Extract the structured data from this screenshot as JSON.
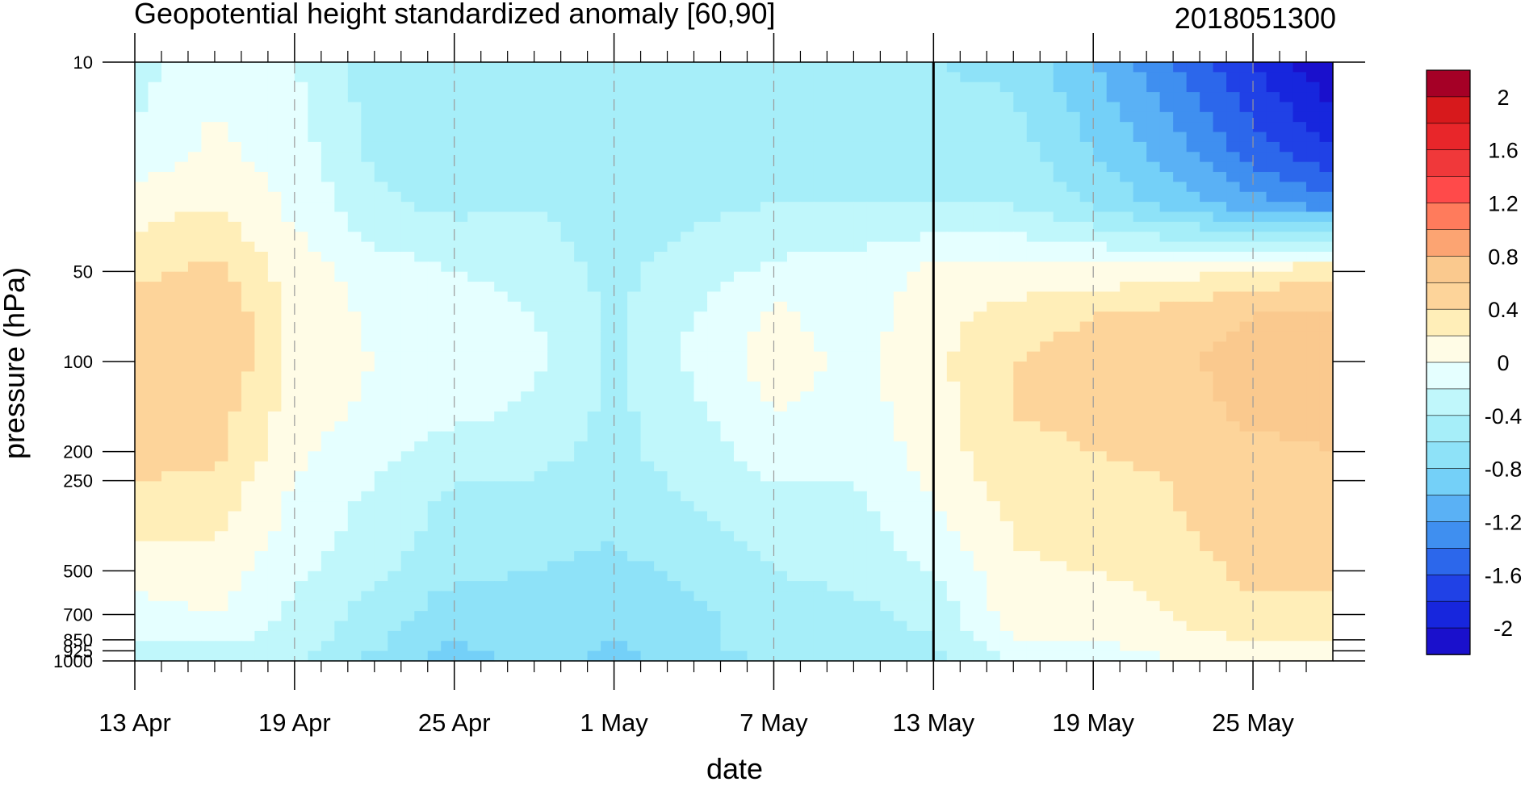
{
  "chart_data": {
    "type": "heatmap",
    "title": "Geopotential height standardized anomaly [60,90]",
    "subtitle": "2018051300",
    "xlabel": "date",
    "ylabel": "pressure (hPa)",
    "x_tick_labels": [
      "13 Apr",
      "19 Apr",
      "25 Apr",
      "1 May",
      "7 May",
      "13 May",
      "19 May",
      "25 May"
    ],
    "x_tick_day_offsets": [
      0,
      6,
      12,
      18,
      24,
      30,
      36,
      42
    ],
    "x_range_days": [
      0,
      45
    ],
    "y_scale": "log",
    "y_range_hpa": [
      1000,
      10
    ],
    "y_tick_labels": [
      "10",
      "50",
      "100",
      "200",
      "250",
      "500",
      "700",
      "850",
      "925",
      "1000"
    ],
    "y_tick_values": [
      10,
      50,
      100,
      200,
      250,
      500,
      700,
      850,
      925,
      1000
    ],
    "current_date_marker_day": 30,
    "vertical_dashed_grid": true,
    "colorbar": {
      "levels": [
        -2.2,
        -2.0,
        -1.8,
        -1.6,
        -1.4,
        -1.2,
        -1.0,
        -0.8,
        -0.6,
        -0.4,
        -0.2,
        0,
        0.2,
        0.4,
        0.6,
        0.8,
        1.0,
        1.2,
        1.4,
        1.6,
        1.8,
        2.0,
        2.2
      ],
      "label_values": [
        "2",
        "1.6",
        "1.2",
        "0.8",
        "0.4",
        "0",
        "-0.4",
        "-0.8",
        "-1.2",
        "-1.6",
        "-2"
      ],
      "colors_top_to_bottom": [
        "#A50026",
        "#D7191C",
        "#E8262A",
        "#F0383A",
        "#FF4A4A",
        "#FF7B5C",
        "#FCA472",
        "#FAC98E",
        "#FDD49A",
        "#FFEEB8",
        "#FFFCE6",
        "#E5FFFF",
        "#C0F7FB",
        "#A6EEF9",
        "#8EE2F8",
        "#74D0F8",
        "#5AB1F5",
        "#3F8FF0",
        "#2C67EB",
        "#2041E6",
        "#1726DD",
        "#1A10CC"
      ]
    },
    "anomaly_grid": {
      "days": [
        0,
        3,
        6,
        9,
        12,
        15,
        18,
        21,
        24,
        27,
        30,
        33,
        36,
        39,
        42,
        45
      ],
      "levels_hpa": [
        10,
        20,
        30,
        50,
        70,
        100,
        150,
        200,
        250,
        300,
        400,
        500,
        600,
        700,
        850,
        925,
        1000
      ],
      "values": [
        [
          -0.3,
          -0.05,
          -0.2,
          -0.5,
          -0.6,
          -0.55,
          -0.6,
          -0.5,
          -0.5,
          -0.55,
          -0.6,
          -0.65,
          -1.0,
          -1.4,
          -1.8,
          -2.2
        ],
        [
          -0.15,
          0.05,
          -0.1,
          -0.45,
          -0.5,
          -0.45,
          -0.55,
          -0.5,
          -0.45,
          -0.5,
          -0.5,
          -0.5,
          -0.8,
          -1.1,
          -1.5,
          -1.8
        ],
        [
          0.1,
          0.2,
          -0.05,
          -0.35,
          -0.45,
          -0.4,
          -0.5,
          -0.45,
          -0.4,
          -0.4,
          -0.4,
          -0.4,
          -0.6,
          -0.9,
          -1.1,
          -1.3
        ],
        [
          0.35,
          0.45,
          0.1,
          -0.1,
          -0.2,
          -0.3,
          -0.45,
          -0.3,
          -0.15,
          -0.1,
          0.05,
          0.05,
          0.05,
          0.1,
          0.25,
          0.35
        ],
        [
          0.5,
          0.6,
          0.15,
          -0.05,
          -0.05,
          -0.2,
          -0.45,
          -0.2,
          0.05,
          -0.1,
          0.1,
          0.3,
          0.4,
          0.5,
          0.6,
          0.65
        ],
        [
          0.6,
          0.6,
          0.15,
          0.0,
          -0.05,
          -0.15,
          -0.45,
          -0.15,
          0.1,
          -0.05,
          0.15,
          0.4,
          0.5,
          0.55,
          0.7,
          0.7
        ],
        [
          0.55,
          0.5,
          0.1,
          -0.05,
          -0.15,
          -0.25,
          -0.45,
          -0.25,
          0.0,
          -0.1,
          0.1,
          0.4,
          0.45,
          0.5,
          0.65,
          0.65
        ],
        [
          0.5,
          0.45,
          0.05,
          -0.15,
          -0.3,
          -0.35,
          -0.45,
          -0.3,
          -0.1,
          -0.15,
          0.1,
          0.35,
          0.4,
          0.45,
          0.55,
          0.6
        ],
        [
          0.4,
          0.35,
          0.0,
          -0.2,
          -0.4,
          -0.4,
          -0.5,
          -0.35,
          -0.2,
          -0.2,
          0.05,
          0.3,
          0.35,
          0.4,
          0.55,
          0.55
        ],
        [
          0.35,
          0.3,
          -0.05,
          -0.25,
          -0.45,
          -0.45,
          -0.55,
          -0.4,
          -0.25,
          -0.25,
          0.0,
          0.25,
          0.3,
          0.4,
          0.5,
          0.55
        ],
        [
          0.2,
          0.2,
          -0.1,
          -0.3,
          -0.5,
          -0.55,
          -0.6,
          -0.5,
          -0.35,
          -0.3,
          -0.1,
          0.2,
          0.3,
          0.35,
          0.5,
          0.5
        ],
        [
          0.05,
          0.1,
          -0.15,
          -0.35,
          -0.55,
          -0.6,
          -0.65,
          -0.55,
          -0.4,
          -0.35,
          -0.2,
          0.15,
          0.2,
          0.3,
          0.45,
          0.45
        ],
        [
          0.0,
          0.05,
          -0.2,
          -0.45,
          -0.65,
          -0.65,
          -0.75,
          -0.6,
          -0.45,
          -0.4,
          -0.3,
          0.15,
          0.1,
          0.25,
          0.4,
          0.4
        ],
        [
          -0.1,
          0.0,
          -0.25,
          -0.5,
          -0.7,
          -0.7,
          -0.8,
          -0.65,
          -0.5,
          -0.45,
          -0.35,
          0.1,
          0.05,
          0.2,
          0.35,
          0.35
        ],
        [
          -0.2,
          -0.15,
          -0.3,
          -0.55,
          -0.8,
          -0.7,
          -0.8,
          -0.65,
          -0.5,
          -0.5,
          -0.4,
          0.0,
          0.0,
          0.15,
          0.2,
          0.25
        ],
        [
          -0.3,
          -0.25,
          -0.35,
          -0.6,
          -0.85,
          -0.7,
          -0.85,
          -0.65,
          -0.55,
          -0.55,
          -0.45,
          -0.1,
          -0.1,
          0.05,
          0.1,
          0.15
        ],
        [
          -0.35,
          -0.3,
          -0.4,
          -0.65,
          -0.95,
          -0.75,
          -0.85,
          -0.7,
          -0.55,
          -0.55,
          -0.5,
          -0.15,
          -0.15,
          0.0,
          0.05,
          0.1
        ]
      ]
    }
  }
}
